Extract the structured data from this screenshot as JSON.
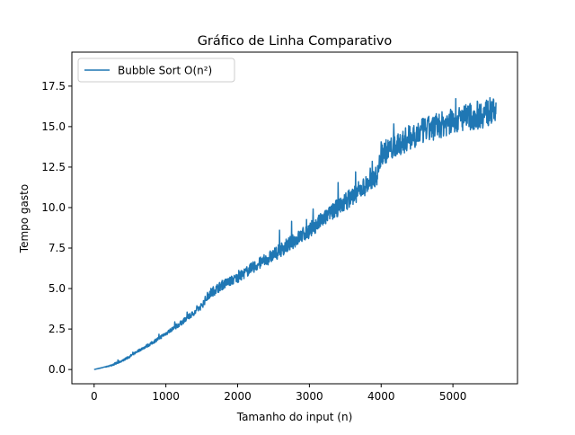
{
  "chart_data": {
    "type": "line",
    "title": "Gráfico de Linha Comparativo",
    "xlabel": "Tamanho do input (n)",
    "ylabel": "Tempo gasto",
    "xlim": [
      -310,
      5900
    ],
    "ylim": [
      -0.88,
      19.6
    ],
    "x_ticks": [
      0,
      1000,
      2000,
      3000,
      4000,
      5000
    ],
    "y_ticks": [
      0.0,
      2.5,
      5.0,
      7.5,
      10.0,
      12.5,
      15.0,
      17.5
    ],
    "x_tick_labels": [
      "0",
      "1000",
      "2000",
      "3000",
      "4000",
      "5000"
    ],
    "y_tick_labels": [
      "0.0",
      "2.5",
      "5.0",
      "7.5",
      "10.0",
      "12.5",
      "15.0",
      "17.5"
    ],
    "grid": false,
    "legend_position": "upper-left",
    "series": [
      {
        "name": "Bubble Sort O(n²)",
        "color": "#1f77b4",
        "x": [
          0,
          200,
          300,
          400,
          500,
          600,
          800,
          1000,
          1200,
          1400,
          1500,
          1600,
          1700,
          1800,
          2000,
          2200,
          2400,
          2500,
          2600,
          2800,
          3000,
          3200,
          3400,
          3600,
          3800,
          3950,
          4000,
          4200,
          4400,
          4600,
          4800,
          5000,
          5200,
          5400,
          5600
        ],
        "values": [
          0.0,
          0.2,
          0.35,
          0.55,
          0.8,
          1.1,
          1.6,
          2.2,
          2.8,
          3.5,
          3.9,
          4.6,
          4.9,
          5.2,
          5.6,
          6.2,
          6.7,
          7.0,
          7.3,
          7.9,
          8.5,
          9.2,
          9.9,
          10.6,
          11.3,
          11.9,
          13.2,
          13.6,
          14.2,
          14.6,
          14.9,
          15.2,
          15.4,
          15.6,
          15.8
        ],
        "noise_amplitude": [
          0.0,
          0.05,
          0.15,
          0.1,
          0.15,
          0.15,
          0.2,
          0.25,
          0.3,
          0.35,
          0.4,
          0.6,
          0.6,
          0.6,
          0.6,
          0.7,
          0.8,
          0.8,
          0.9,
          0.9,
          1.0,
          1.0,
          1.1,
          1.2,
          1.2,
          1.2,
          1.5,
          1.5,
          1.6,
          1.6,
          1.6,
          1.6,
          1.7,
          1.8,
          1.8
        ]
      }
    ]
  }
}
